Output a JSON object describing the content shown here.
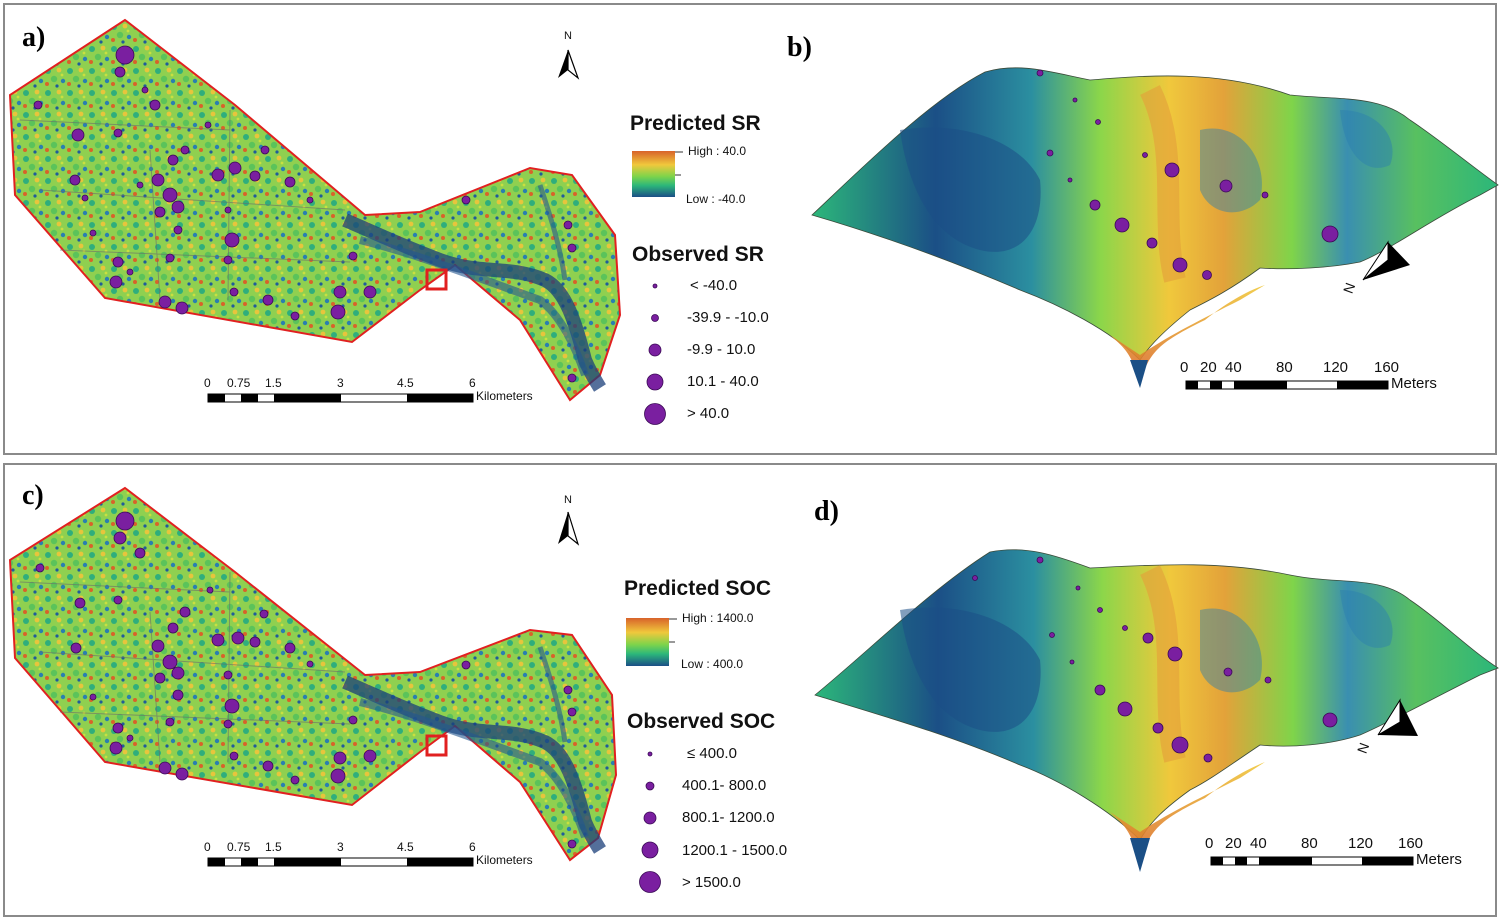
{
  "panels": [
    {
      "label": "a)",
      "legend_title": "Predicted SR",
      "high_label": "High : 40.0",
      "low_label": "Low : -40.0",
      "observed_title": "Observed SR",
      "classes": [
        "< -40.0",
        "-39.9 - -10.0",
        "-9.9 - 10.0",
        "10.1 - 40.0",
        "> 40.0"
      ]
    },
    {
      "label": "b)"
    },
    {
      "label": "c)",
      "legend_title": "Predicted SOC",
      "high_label": "High : 1400.0",
      "low_label": "Low : 400.0",
      "observed_title": "Observed SOC",
      "classes": [
        "≤ 400.0",
        "400.1- 800.0",
        "800.1- 1200.0",
        "1200.1 - 1500.0",
        "> 1500.0"
      ]
    },
    {
      "label": "d)"
    }
  ],
  "north_label": "N",
  "map_scale": {
    "ticks": [
      "0",
      "0.75",
      "1.5",
      "3",
      "4.5",
      "6"
    ],
    "unit": "Kilometers"
  },
  "terrain_scale": {
    "ticks": [
      "0",
      "20",
      "40",
      "80",
      "120",
      "160"
    ],
    "unit": "Meters"
  },
  "terrain_north": "N",
  "colors": {
    "high": "#d8632a",
    "mid_high": "#f0c83c",
    "mid": "#7fd44a",
    "mid_low": "#2cb77a",
    "low": "#1b4f86",
    "points": "#7a1fa0",
    "boundary": "#e12020"
  }
}
